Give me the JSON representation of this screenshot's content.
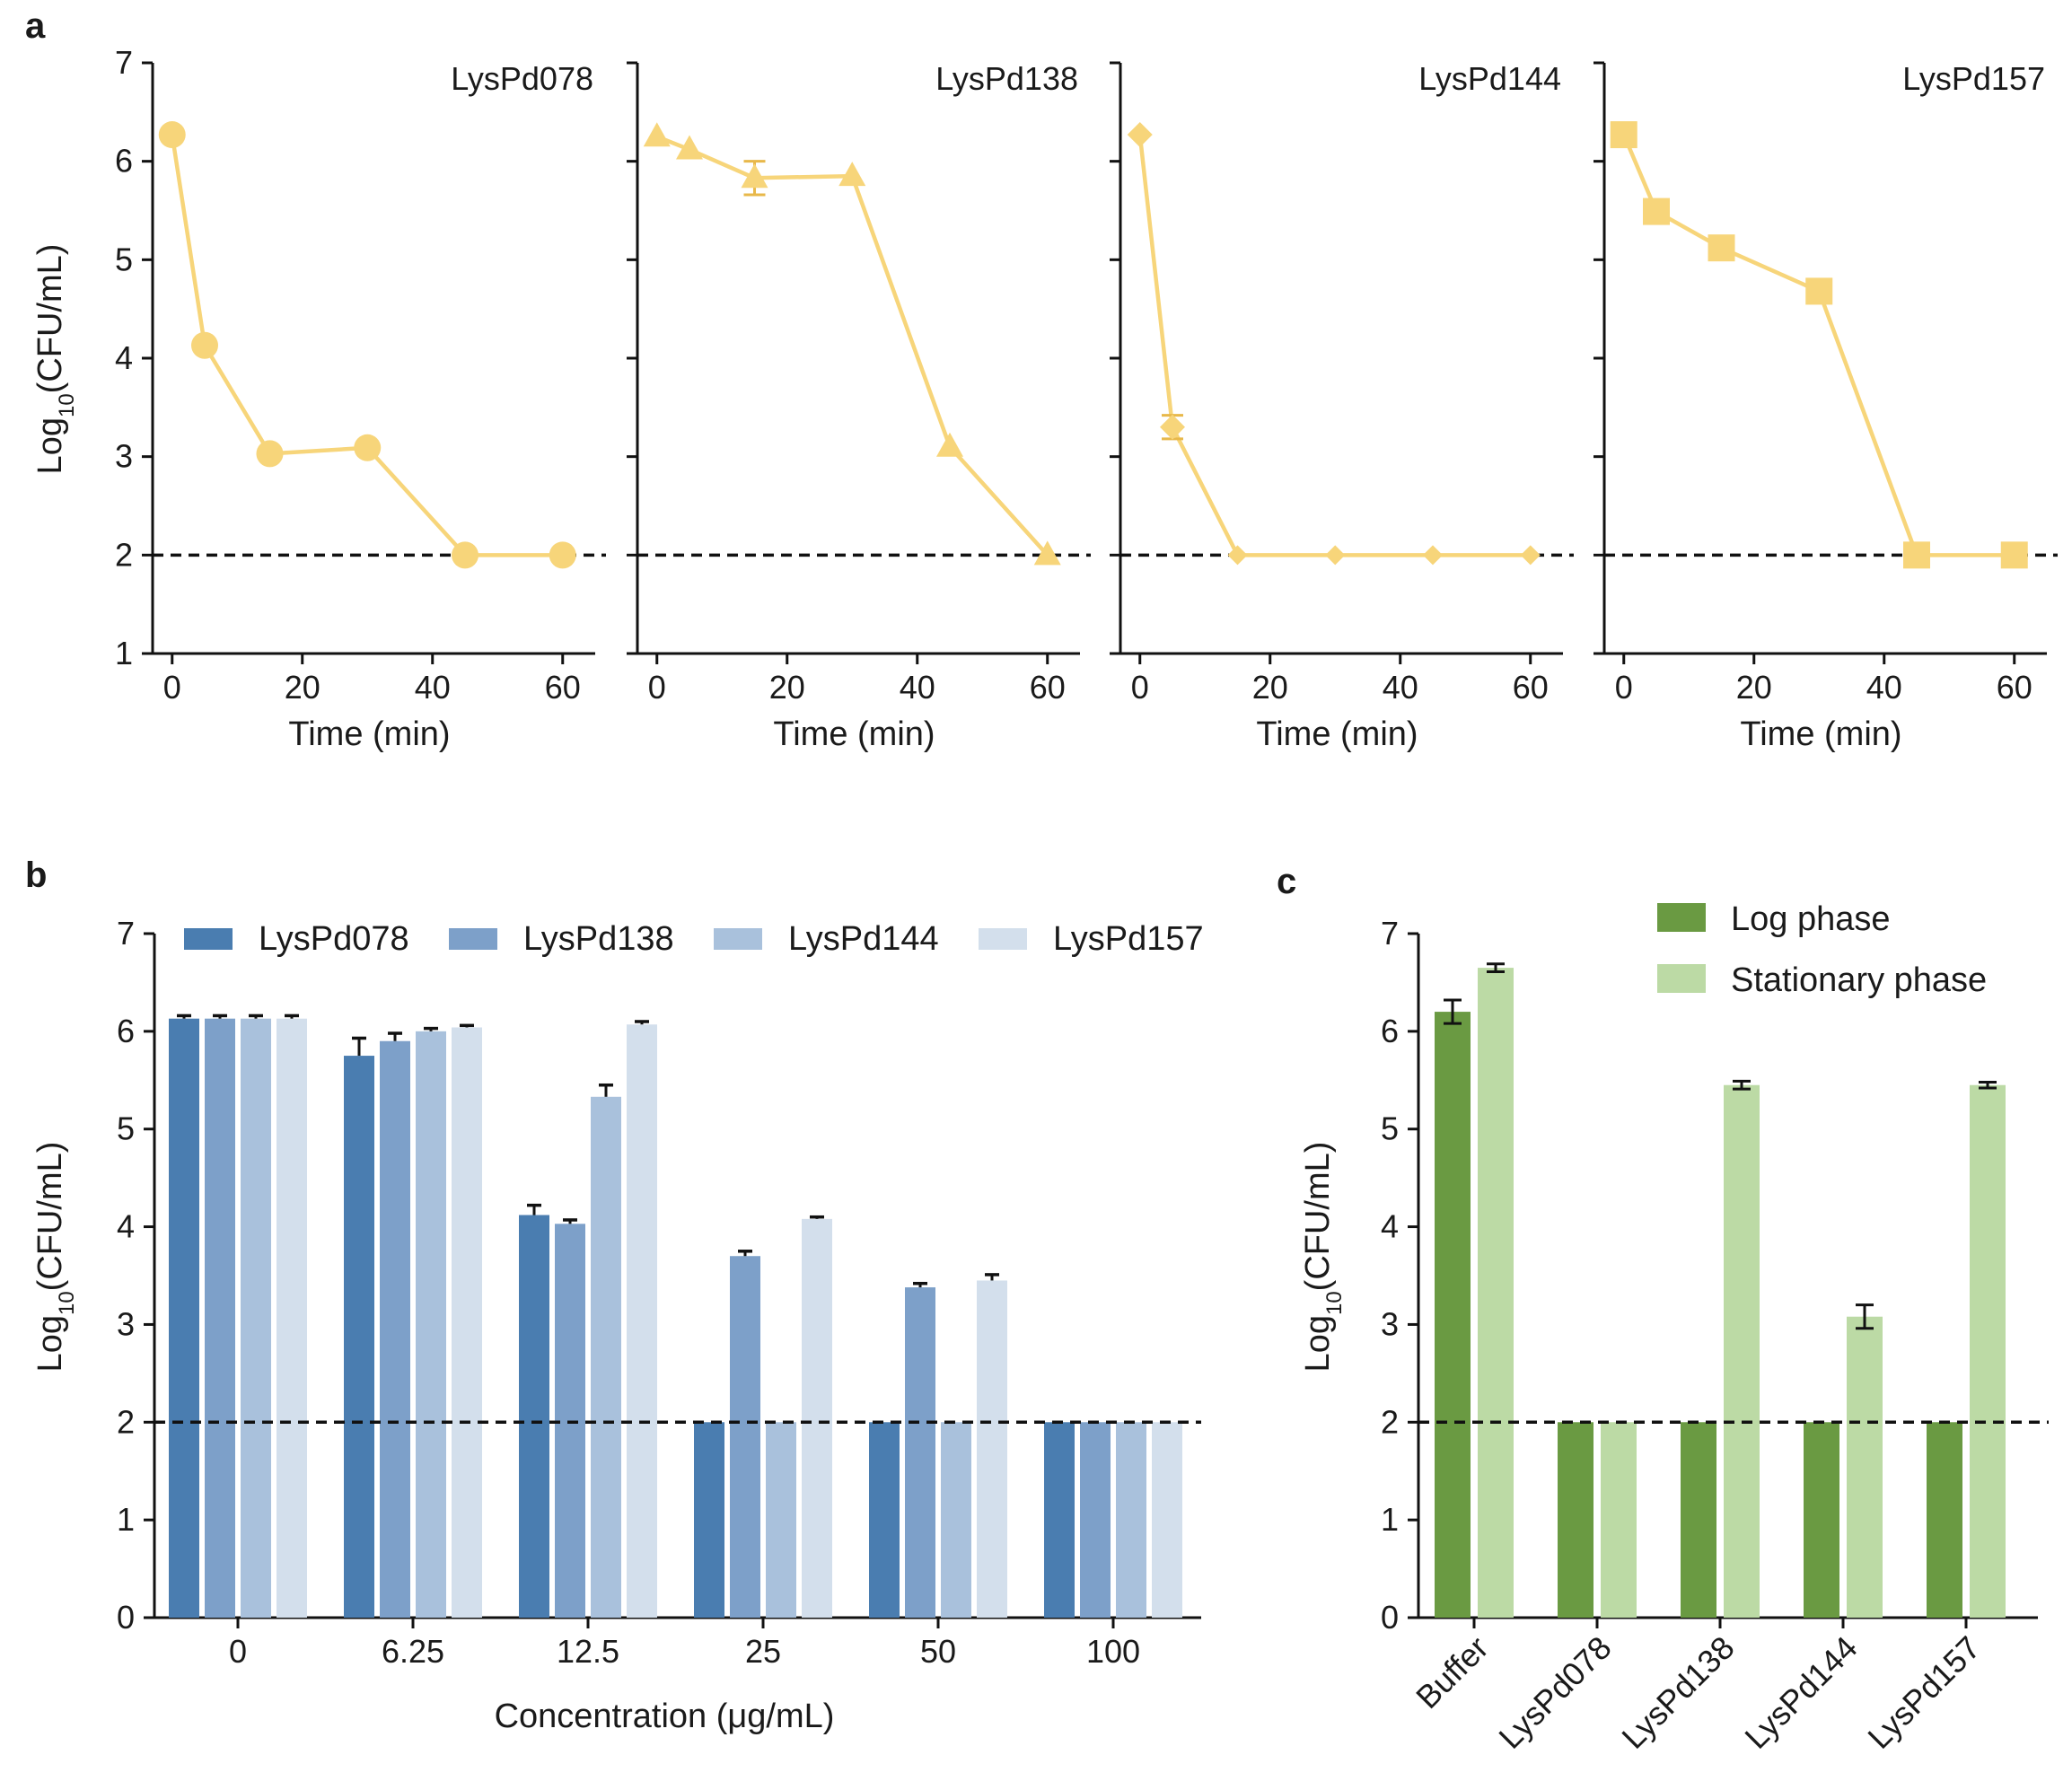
{
  "chart_data": [
    {
      "panel": "a",
      "type": "line",
      "ylabel": "Log10(CFU/mL)",
      "ylabel_base": "Log",
      "ylabel_sub": "10",
      "ylabel_rest": "(CFU/mL)",
      "xlabel": "Time (min)",
      "xlim": [
        -3,
        65
      ],
      "ylim": [
        1,
        7
      ],
      "xticks": [
        0,
        20,
        40,
        60
      ],
      "yticks": [
        1,
        2,
        3,
        4,
        5,
        6,
        7
      ],
      "detection_limit": 2,
      "color": "#F7D57A",
      "subplots": [
        {
          "title": "LysPd078",
          "marker": "circle",
          "x": [
            0,
            5,
            15,
            30,
            45,
            60
          ],
          "y": [
            6.27,
            4.13,
            3.03,
            3.09,
            2.0,
            2.0
          ],
          "err": [
            0,
            0,
            0,
            0,
            0,
            0
          ]
        },
        {
          "title": "LysPd138",
          "marker": "triangle",
          "x": [
            0,
            5,
            15,
            30,
            45,
            60
          ],
          "y": [
            6.25,
            6.12,
            5.83,
            5.85,
            3.1,
            2.0
          ],
          "err": [
            0,
            0,
            0.17,
            0,
            0,
            0
          ]
        },
        {
          "title": "LysPd144",
          "marker": "diamond",
          "x": [
            0,
            5,
            15,
            30,
            45,
            60
          ],
          "y": [
            6.27,
            3.3,
            2.0,
            2.0,
            2.0,
            2.0
          ],
          "err": [
            0,
            0.12,
            0,
            0,
            0,
            0
          ]
        },
        {
          "title": "LysPd157",
          "marker": "square",
          "x": [
            0,
            5,
            15,
            30,
            45,
            60
          ],
          "y": [
            6.27,
            5.49,
            5.12,
            4.68,
            2.0,
            2.0
          ],
          "err": [
            0,
            0,
            0,
            0,
            0,
            0
          ]
        }
      ]
    },
    {
      "panel": "b",
      "type": "bar",
      "ylabel": "Log10(CFU/mL)",
      "ylabel_base": "Log",
      "ylabel_sub": "10",
      "ylabel_rest": "(CFU/mL)",
      "xlabel": "Concentration (μg/mL)",
      "categories": [
        "0",
        "6.25",
        "12.5",
        "25",
        "50",
        "100"
      ],
      "ylim": [
        0,
        7
      ],
      "yticks": [
        0,
        1,
        2,
        3,
        4,
        5,
        6,
        7
      ],
      "detection_limit": 2,
      "legend_position": "top",
      "series": [
        {
          "name": "LysPd078",
          "color": "#4A7DB0",
          "values": [
            6.13,
            5.75,
            4.12,
            2.0,
            2.0,
            2.0
          ],
          "err": [
            0.03,
            0.18,
            0.1,
            0,
            0,
            0
          ]
        },
        {
          "name": "LysPd138",
          "color": "#7DA0C9",
          "values": [
            6.13,
            5.9,
            4.03,
            3.7,
            3.38,
            2.0
          ],
          "err": [
            0.03,
            0.08,
            0.04,
            0.05,
            0.04,
            0
          ]
        },
        {
          "name": "LysPd144",
          "color": "#A9C1DC",
          "values": [
            6.13,
            6.0,
            5.33,
            2.0,
            2.0,
            2.0
          ],
          "err": [
            0.03,
            0.03,
            0.12,
            0,
            0,
            0
          ]
        },
        {
          "name": "LysPd157",
          "color": "#D3DFEC",
          "values": [
            6.13,
            6.04,
            6.07,
            4.08,
            3.45,
            2.0
          ],
          "err": [
            0.03,
            0.02,
            0.03,
            0.02,
            0.06,
            0
          ]
        }
      ]
    },
    {
      "panel": "c",
      "type": "bar",
      "ylabel": "Log10(CFU/mL)",
      "ylabel_base": "Log",
      "ylabel_sub": "10",
      "ylabel_rest": "(CFU/mL)",
      "xlabel": "",
      "categories": [
        "Buffer",
        "LysPd078",
        "LysPd138",
        "LysPd144",
        "LysPd157"
      ],
      "ylim": [
        0,
        7
      ],
      "yticks": [
        0,
        1,
        2,
        3,
        4,
        5,
        6,
        7
      ],
      "detection_limit": 2,
      "legend_position": "top-right",
      "series": [
        {
          "name": "Log phase",
          "color": "#6A9A42",
          "values": [
            6.2,
            2.0,
            2.0,
            2.0,
            2.0
          ],
          "err": [
            0.12,
            0,
            0,
            0,
            0
          ]
        },
        {
          "name": "Stationary phase",
          "color": "#BCDAA5",
          "values": [
            6.65,
            2.0,
            5.45,
            3.08,
            5.45
          ],
          "err": [
            0.04,
            0,
            0.04,
            0.12,
            0.03
          ]
        }
      ]
    }
  ]
}
